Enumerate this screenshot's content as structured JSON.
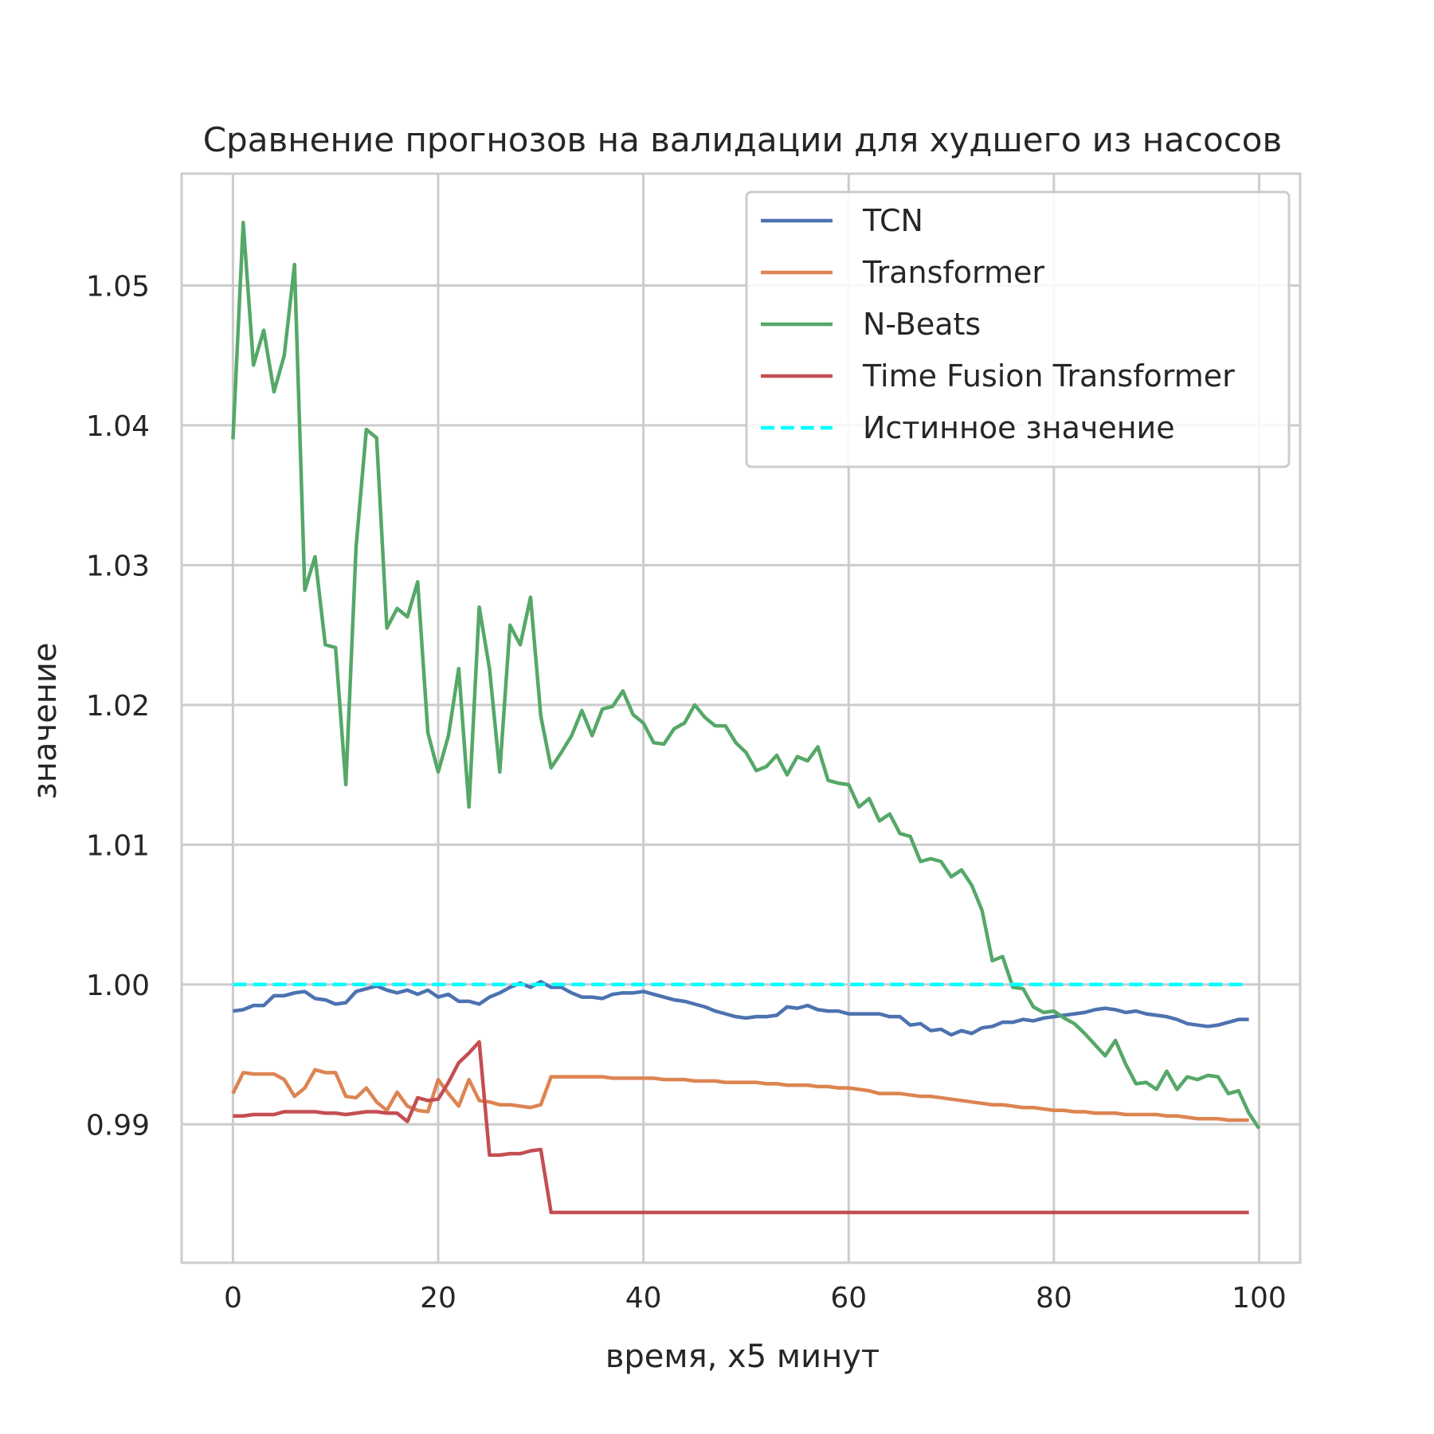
{
  "chart_data": {
    "type": "line",
    "title": "Сравнение прогнозов на валидации для худшего из насосов",
    "xlabel": "время, x5 минут",
    "ylabel": "значение",
    "xlim": [
      -5,
      104
    ],
    "ylim": [
      0.9801,
      1.058
    ],
    "xticks": [
      0,
      20,
      40,
      60,
      80,
      100
    ],
    "xtick_labels": [
      "0",
      "20",
      "40",
      "60",
      "80",
      "100"
    ],
    "yticks": [
      0.99,
      1.0,
      1.01,
      1.02,
      1.03,
      1.04,
      1.05
    ],
    "ytick_labels": [
      "0.99",
      "1.00",
      "1.01",
      "1.02",
      "1.03",
      "1.04",
      "1.05"
    ],
    "grid": true,
    "legend_position": "top-right",
    "colors": {
      "tcn": "#4c72b0",
      "transformer": "#dd8452",
      "nbeats": "#55a868",
      "tft": "#c44e52",
      "truth": "#00ffff",
      "grid": "#cccccc",
      "spine": "#cccccc"
    },
    "series": [
      {
        "name": "TCN",
        "color": "#4c72b0",
        "dash": "solid",
        "x_start": 0,
        "values": [
          0.9981,
          0.9982,
          0.9985,
          0.9985,
          0.9992,
          0.9992,
          0.9994,
          0.9995,
          0.999,
          0.9989,
          0.9986,
          0.9987,
          0.9995,
          0.9997,
          0.9999,
          0.9996,
          0.9994,
          0.9996,
          0.9993,
          0.9996,
          0.9991,
          0.9993,
          0.9988,
          0.9988,
          0.9986,
          0.9991,
          0.9994,
          0.9998,
          1.0001,
          0.9998,
          1.0002,
          0.9998,
          0.9998,
          0.9994,
          0.9991,
          0.9991,
          0.999,
          0.9993,
          0.9994,
          0.9994,
          0.9995,
          0.9993,
          0.9991,
          0.9989,
          0.9988,
          0.9986,
          0.9984,
          0.9981,
          0.9979,
          0.9977,
          0.9976,
          0.9977,
          0.9977,
          0.9978,
          0.9984,
          0.9983,
          0.9985,
          0.9982,
          0.9981,
          0.9981,
          0.9979,
          0.9979,
          0.9979,
          0.9979,
          0.9977,
          0.9977,
          0.9971,
          0.9972,
          0.9967,
          0.9968,
          0.9964,
          0.9967,
          0.9965,
          0.9969,
          0.997,
          0.9973,
          0.9973,
          0.9975,
          0.9974,
          0.9976,
          0.9977,
          0.9978,
          0.9979,
          0.998,
          0.9982,
          0.9983,
          0.9982,
          0.998,
          0.9981,
          0.9979,
          0.9978,
          0.9977,
          0.9975,
          0.9972,
          0.9971,
          0.997,
          0.9971,
          0.9973,
          0.9975,
          0.9975
        ]
      },
      {
        "name": "Transformer",
        "color": "#dd8452",
        "dash": "solid",
        "x_start": 0,
        "values": [
          0.9922,
          0.9937,
          0.9936,
          0.9936,
          0.9936,
          0.9932,
          0.992,
          0.9926,
          0.9939,
          0.9937,
          0.9937,
          0.992,
          0.9919,
          0.9926,
          0.9916,
          0.991,
          0.9923,
          0.9913,
          0.991,
          0.9909,
          0.9932,
          0.9922,
          0.9913,
          0.9932,
          0.9917,
          0.9916,
          0.9914,
          0.9914,
          0.9913,
          0.9912,
          0.9914,
          0.9934,
          0.9934,
          0.9934,
          0.9934,
          0.9934,
          0.9934,
          0.9933,
          0.9933,
          0.9933,
          0.9933,
          0.9933,
          0.9932,
          0.9932,
          0.9932,
          0.9931,
          0.9931,
          0.9931,
          0.993,
          0.993,
          0.993,
          0.993,
          0.9929,
          0.9929,
          0.9928,
          0.9928,
          0.9928,
          0.9927,
          0.9927,
          0.9926,
          0.9926,
          0.9925,
          0.9924,
          0.9922,
          0.9922,
          0.9922,
          0.9921,
          0.992,
          0.992,
          0.9919,
          0.9918,
          0.9917,
          0.9916,
          0.9915,
          0.9914,
          0.9914,
          0.9913,
          0.9912,
          0.9912,
          0.9911,
          0.991,
          0.991,
          0.9909,
          0.9909,
          0.9908,
          0.9908,
          0.9908,
          0.9907,
          0.9907,
          0.9907,
          0.9907,
          0.9906,
          0.9906,
          0.9905,
          0.9904,
          0.9904,
          0.9904,
          0.9903,
          0.9903,
          0.9903
        ]
      },
      {
        "name": "N-Beats",
        "color": "#55a868",
        "dash": "solid",
        "x_start": 0,
        "values": [
          1.039,
          1.0545,
          1.0443,
          1.0468,
          1.0424,
          1.045,
          1.0515,
          1.0282,
          1.0306,
          1.0243,
          1.0241,
          1.0143,
          1.0313,
          1.0397,
          1.0391,
          1.0255,
          1.0269,
          1.0263,
          1.0288,
          1.018,
          1.0152,
          1.0178,
          1.0226,
          1.0127,
          1.027,
          1.0226,
          1.0152,
          1.0257,
          1.0243,
          1.0277,
          1.0192,
          1.0155,
          1.0166,
          1.0178,
          1.0196,
          1.0178,
          1.0197,
          1.0199,
          1.021,
          1.0193,
          1.0187,
          1.0173,
          1.0172,
          1.0183,
          1.0187,
          1.02,
          1.0191,
          1.0185,
          1.0185,
          1.0173,
          1.0166,
          1.0153,
          1.0156,
          1.0164,
          1.015,
          1.0163,
          1.016,
          1.017,
          1.0146,
          1.0144,
          1.0143,
          1.0127,
          1.0133,
          1.0117,
          1.0122,
          1.0108,
          1.0106,
          1.0088,
          1.009,
          1.0088,
          1.0077,
          1.0082,
          1.0071,
          1.0053,
          1.0017,
          1.002,
          0.9998,
          0.9997,
          0.9984,
          0.998,
          0.9981,
          0.9976,
          0.9972,
          0.9965,
          0.9957,
          0.9949,
          0.996,
          0.9943,
          0.9929,
          0.993,
          0.9925,
          0.9938,
          0.9925,
          0.9934,
          0.9932,
          0.9935,
          0.9934,
          0.9922,
          0.9924,
          0.9908,
          0.9897
        ]
      },
      {
        "name": "Time Fusion Transformer",
        "color": "#c44e52",
        "dash": "solid",
        "x_start": 0,
        "values": [
          0.9906,
          0.9906,
          0.9907,
          0.9907,
          0.9907,
          0.9909,
          0.9909,
          0.9909,
          0.9909,
          0.9908,
          0.9908,
          0.9907,
          0.9908,
          0.9909,
          0.9909,
          0.9908,
          0.9908,
          0.9902,
          0.9919,
          0.9917,
          0.9918,
          0.993,
          0.9944,
          0.9951,
          0.9959,
          0.9878,
          0.9878,
          0.9879,
          0.9879,
          0.9881,
          0.9882,
          0.9837,
          0.9837,
          0.9837,
          0.9837,
          0.9837,
          0.9837,
          0.9837,
          0.9837,
          0.9837,
          0.9837,
          0.9837,
          0.9837,
          0.9837,
          0.9837,
          0.9837,
          0.9837,
          0.9837,
          0.9837,
          0.9837,
          0.9837,
          0.9837,
          0.9837,
          0.9837,
          0.9837,
          0.9837,
          0.9837,
          0.9837,
          0.9837,
          0.9837,
          0.9837,
          0.9837,
          0.9837,
          0.9837,
          0.9837,
          0.9837,
          0.9837,
          0.9837,
          0.9837,
          0.9837,
          0.9837,
          0.9837,
          0.9837,
          0.9837,
          0.9837,
          0.9837,
          0.9837,
          0.9837,
          0.9837,
          0.9837,
          0.9837,
          0.9837,
          0.9837,
          0.9837,
          0.9837,
          0.9837,
          0.9837,
          0.9837,
          0.9837,
          0.9837,
          0.9837,
          0.9837,
          0.9837,
          0.9837,
          0.9837,
          0.9837,
          0.9837,
          0.9837,
          0.9837,
          0.9837
        ]
      },
      {
        "name": "Истинное значение",
        "color": "#00ffff",
        "dash": "dashed",
        "x_start": 0,
        "constant": 1.0,
        "x_end": 99
      }
    ]
  }
}
